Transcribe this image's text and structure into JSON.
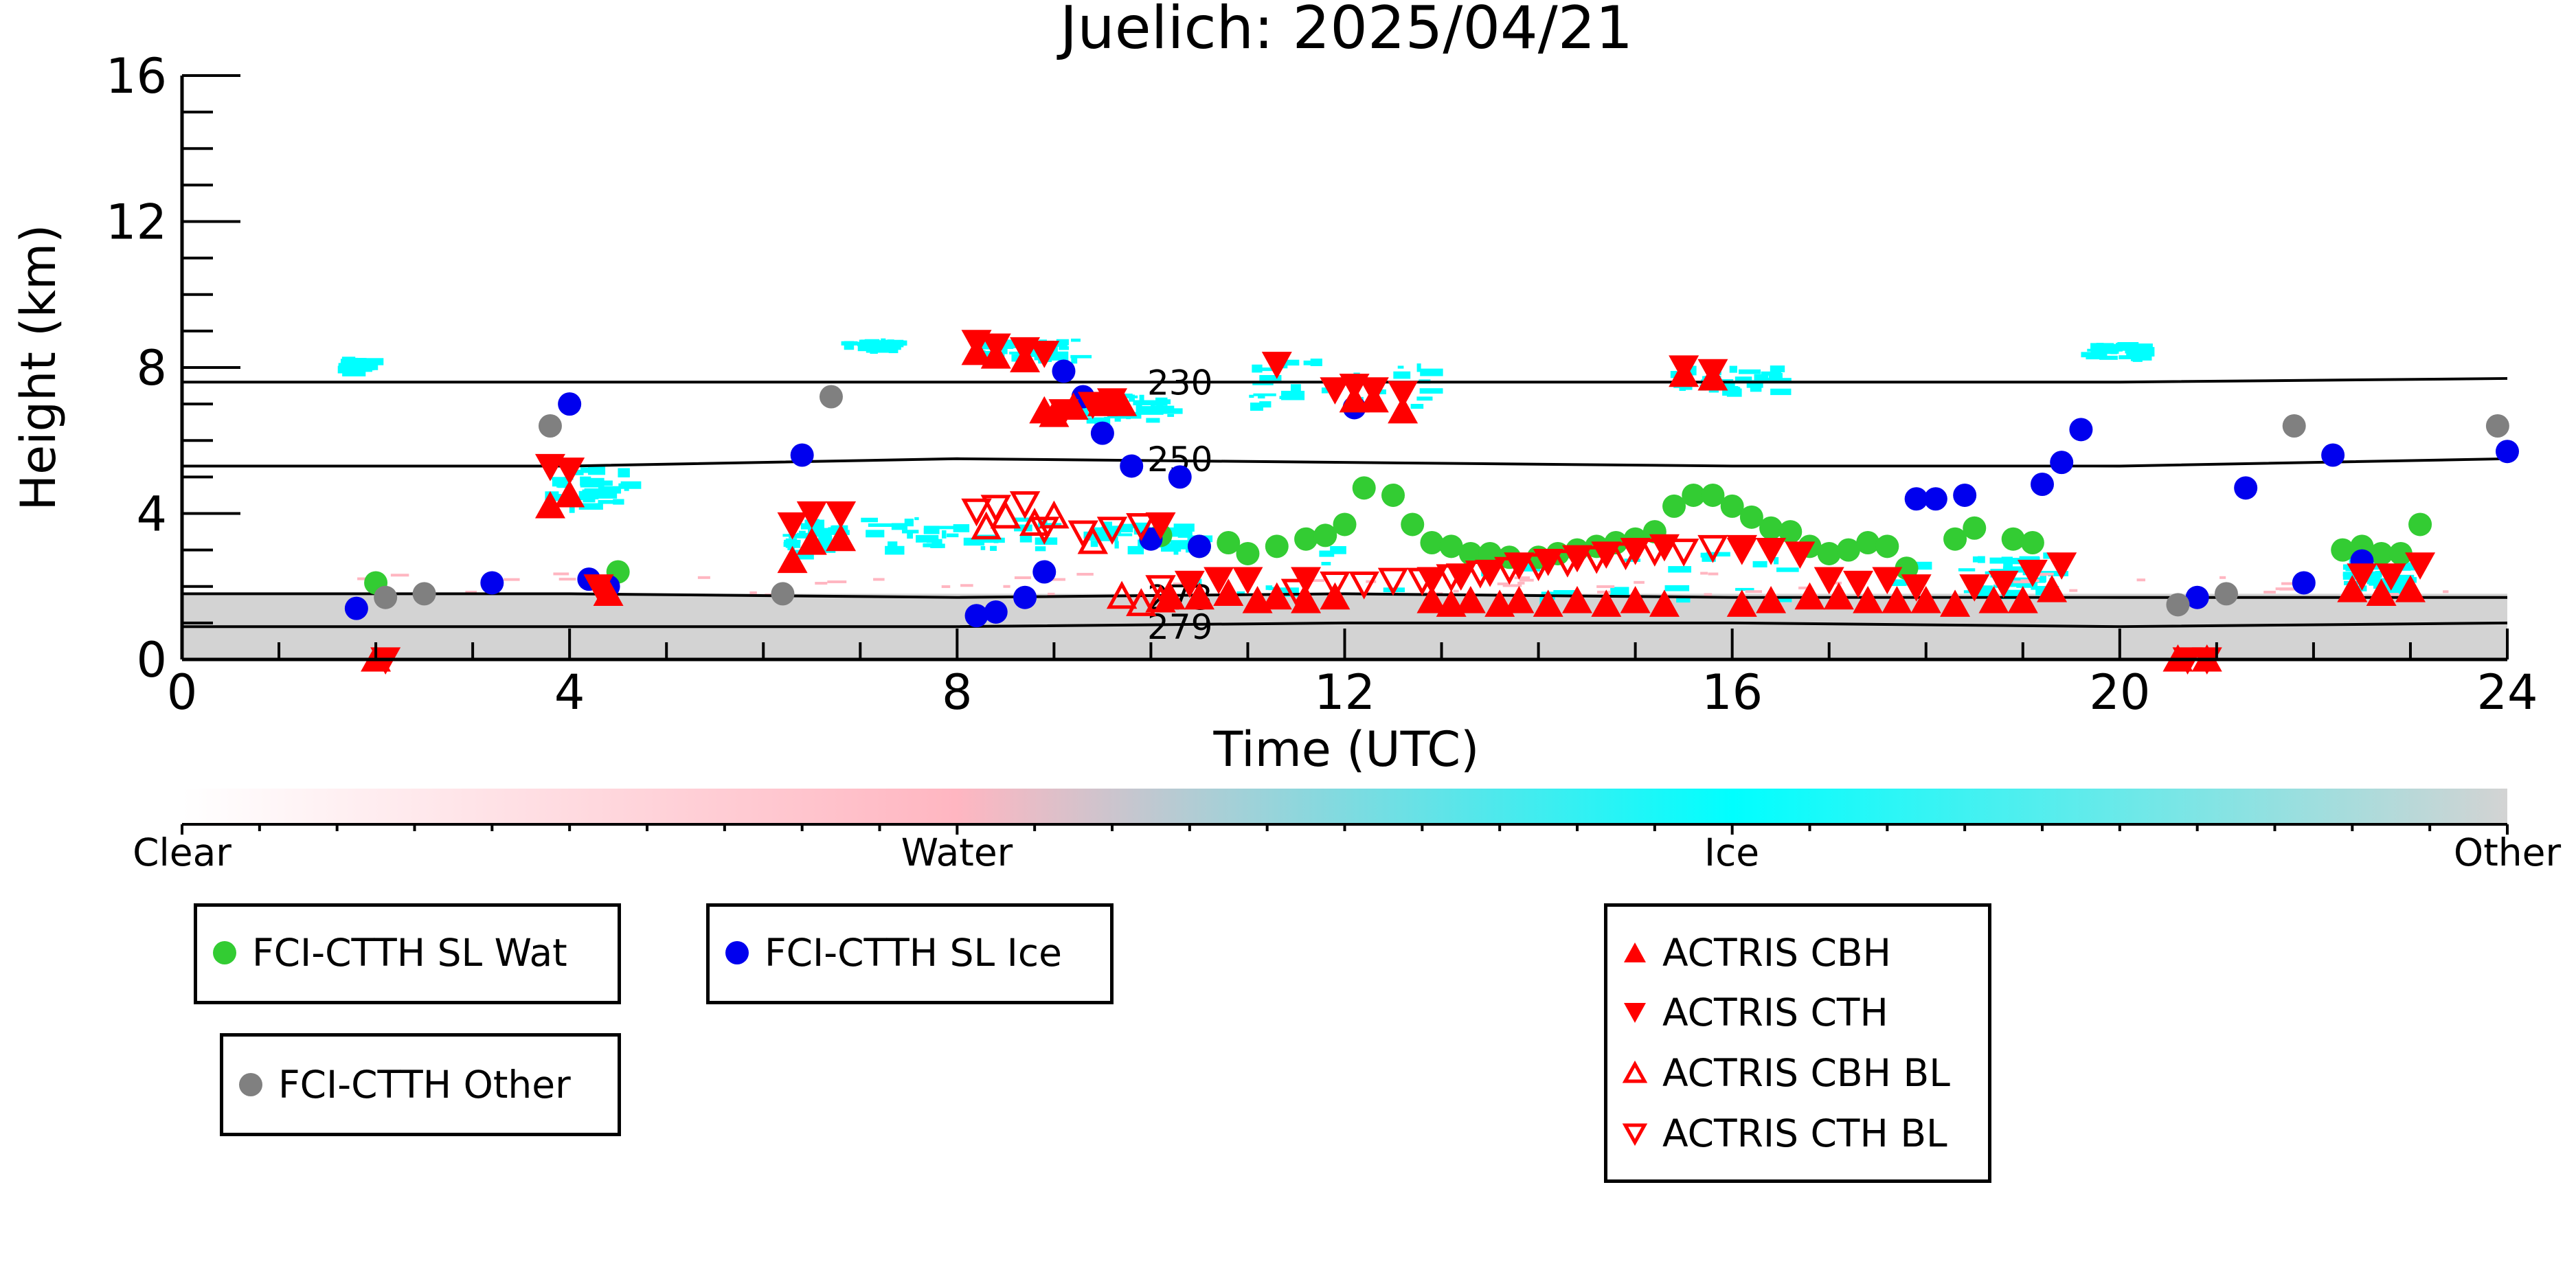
{
  "chart_data": {
    "type": "scatter",
    "title": "Juelich: 2025/04/21",
    "xlabel": "Time (UTC)",
    "ylabel": "Height (km)",
    "xlim": [
      0,
      24
    ],
    "ylim": [
      0,
      16
    ],
    "xticks": [
      0,
      4,
      8,
      12,
      16,
      20,
      24
    ],
    "yticks": [
      0,
      4,
      8,
      12,
      16
    ],
    "isotherms": [
      {
        "label": "230",
        "x": [
          0,
          4,
          8,
          12,
          16,
          20,
          24
        ],
        "y": [
          7.6,
          7.6,
          7.6,
          7.6,
          7.6,
          7.6,
          7.7
        ]
      },
      {
        "label": "250",
        "x": [
          0,
          4,
          8,
          12,
          16,
          20,
          24
        ],
        "y": [
          5.3,
          5.3,
          5.5,
          5.4,
          5.3,
          5.3,
          5.5
        ]
      },
      {
        "label": "273",
        "x": [
          0,
          4,
          8,
          12,
          16,
          20,
          24
        ],
        "y": [
          1.8,
          1.8,
          1.7,
          1.8,
          1.7,
          1.7,
          1.7
        ]
      },
      {
        "label": "279",
        "x": [
          0,
          4,
          8,
          12,
          16,
          20,
          24
        ],
        "y": [
          0.9,
          0.9,
          0.9,
          1.0,
          1.0,
          0.9,
          1.0
        ]
      }
    ],
    "series": [
      {
        "name": "FCI-CTTH SL Wat",
        "color": "#33cc33",
        "marker": "circle",
        "x": [
          2.0,
          4.5,
          10.1,
          10.5,
          10.8,
          11.0,
          11.3,
          11.6,
          11.8,
          12.0,
          12.2,
          12.5,
          12.7,
          12.9,
          13.1,
          13.3,
          13.5,
          13.7,
          14.0,
          14.2,
          14.4,
          14.6,
          14.8,
          15.0,
          15.2,
          15.4,
          15.6,
          15.8,
          16.0,
          16.2,
          16.4,
          16.6,
          16.8,
          17.0,
          17.2,
          17.4,
          17.6,
          17.8,
          18.3,
          18.5,
          18.9,
          19.1,
          22.3,
          22.5,
          22.7,
          22.9,
          23.1
        ],
        "y": [
          2.1,
          2.4,
          3.4,
          3.1,
          3.2,
          2.9,
          3.1,
          3.3,
          3.4,
          3.7,
          4.7,
          4.5,
          3.7,
          3.2,
          3.1,
          2.9,
          2.9,
          2.8,
          2.8,
          2.9,
          3.0,
          3.1,
          3.2,
          3.3,
          3.5,
          4.2,
          4.5,
          4.5,
          4.2,
          3.9,
          3.6,
          3.5,
          3.1,
          2.9,
          3.0,
          3.2,
          3.1,
          2.5,
          3.3,
          3.6,
          3.3,
          3.2,
          3.0,
          3.1,
          2.9,
          2.9,
          3.7
        ]
      },
      {
        "name": "FCI-CTTH SL Ice",
        "color": "#0000ee",
        "marker": "circle",
        "x": [
          1.8,
          3.2,
          4.0,
          4.2,
          4.4,
          6.4,
          8.2,
          8.4,
          8.7,
          8.9,
          9.1,
          9.3,
          9.5,
          9.8,
          10.0,
          10.3,
          10.5,
          12.1,
          17.9,
          18.1,
          18.4,
          19.2,
          19.4,
          19.6,
          20.8,
          21.3,
          21.9,
          22.2,
          22.5,
          24.0
        ],
        "y": [
          1.4,
          2.1,
          7.0,
          2.2,
          2.0,
          5.6,
          1.2,
          1.3,
          1.7,
          2.4,
          7.9,
          7.2,
          6.2,
          5.3,
          3.3,
          5.0,
          3.1,
          6.9,
          4.4,
          4.4,
          4.5,
          4.8,
          5.4,
          6.3,
          1.7,
          4.7,
          2.1,
          5.6,
          2.7,
          5.7
        ]
      },
      {
        "name": "FCI-CTTH Other",
        "color": "#808080",
        "marker": "circle",
        "x": [
          2.1,
          2.5,
          3.8,
          6.2,
          6.7,
          20.6,
          21.1,
          21.8,
          23.9
        ],
        "y": [
          1.7,
          1.8,
          6.4,
          1.8,
          7.2,
          1.5,
          1.8,
          6.4,
          6.4
        ]
      },
      {
        "name": "ACTRIS CBH",
        "color": "#ff0000",
        "marker": "triangle-up",
        "x": [
          2.0,
          3.8,
          4.0,
          4.4,
          6.3,
          6.5,
          6.8,
          8.2,
          8.4,
          8.7,
          8.9,
          9.0,
          9.2,
          9.5,
          9.7,
          10.2,
          10.5,
          10.8,
          11.1,
          11.3,
          11.6,
          11.9,
          12.1,
          12.3,
          12.6,
          12.9,
          13.1,
          13.3,
          13.6,
          13.8,
          14.1,
          14.4,
          14.7,
          15.0,
          15.3,
          15.5,
          15.8,
          16.1,
          16.4,
          16.8,
          17.1,
          17.4,
          17.7,
          18.0,
          18.3,
          18.7,
          19.0,
          19.3,
          20.6,
          20.9,
          22.4,
          22.7,
          23.0
        ],
        "y": [
          0.0,
          4.2,
          4.5,
          1.8,
          2.7,
          3.2,
          3.3,
          8.4,
          8.3,
          8.2,
          6.8,
          6.7,
          6.9,
          7.0,
          7.0,
          1.7,
          1.7,
          1.8,
          1.6,
          1.7,
          1.6,
          1.7,
          7.1,
          7.1,
          6.8,
          1.6,
          1.5,
          1.6,
          1.5,
          1.6,
          1.5,
          1.6,
          1.5,
          1.6,
          1.5,
          7.8,
          7.7,
          1.5,
          1.6,
          1.7,
          1.7,
          1.6,
          1.6,
          1.6,
          1.5,
          1.6,
          1.6,
          1.9,
          0.0,
          0.0,
          1.9,
          1.8,
          1.9
        ]
      },
      {
        "name": "ACTRIS CTH",
        "color": "#ff0000",
        "marker": "triangle-down",
        "x": [
          2.1,
          3.8,
          4.0,
          4.3,
          6.3,
          6.5,
          6.8,
          8.2,
          8.4,
          8.7,
          8.9,
          9.1,
          9.4,
          9.6,
          10.1,
          10.4,
          10.7,
          11.0,
          11.3,
          11.6,
          11.9,
          12.1,
          12.3,
          12.6,
          12.9,
          13.2,
          13.5,
          13.8,
          14.1,
          14.4,
          14.7,
          15.0,
          15.3,
          15.5,
          15.8,
          16.1,
          16.4,
          16.7,
          17.0,
          17.3,
          17.6,
          17.9,
          18.5,
          18.8,
          19.1,
          19.4,
          20.7,
          20.9,
          22.5,
          22.8,
          23.1
        ],
        "y": [
          0.0,
          5.3,
          5.2,
          2.0,
          3.7,
          4.0,
          4.0,
          8.7,
          8.6,
          8.5,
          8.4,
          6.8,
          7.0,
          7.1,
          3.7,
          2.1,
          2.2,
          2.2,
          8.1,
          2.2,
          7.4,
          7.5,
          7.4,
          7.3,
          2.2,
          2.3,
          2.4,
          2.6,
          2.7,
          2.8,
          2.9,
          3.0,
          3.1,
          8.0,
          7.9,
          3.0,
          3.0,
          2.9,
          2.2,
          2.1,
          2.2,
          2.0,
          2.0,
          2.1,
          2.4,
          2.6,
          0.0,
          0.0,
          2.3,
          2.3,
          2.6
        ]
      },
      {
        "name": "ACTRIS CBH BL",
        "color": "#ff0000",
        "marker": "triangle-up-open",
        "x": [
          8.3,
          8.5,
          8.8,
          9.0,
          9.4,
          9.7,
          9.9,
          10.1
        ],
        "y": [
          3.6,
          3.9,
          3.7,
          3.9,
          3.2,
          1.7,
          1.5,
          1.6
        ]
      },
      {
        "name": "ACTRIS CTH BL",
        "color": "#ff0000",
        "marker": "triangle-down-open",
        "x": [
          8.2,
          8.4,
          8.7,
          8.9,
          9.3,
          9.6,
          9.9,
          10.1,
          11.5,
          11.9,
          12.2,
          12.5,
          12.8,
          13.1,
          13.4,
          13.7,
          14.0,
          14.3,
          14.6,
          14.9,
          15.2,
          15.5,
          15.8,
          16.1
        ],
        "y": [
          4.1,
          4.2,
          4.3,
          3.6,
          3.5,
          3.6,
          3.7,
          2.0,
          1.9,
          2.1,
          2.1,
          2.2,
          2.2,
          2.3,
          2.4,
          2.5,
          2.6,
          2.7,
          2.8,
          2.9,
          3.0,
          3.0,
          3.1,
          3.1
        ]
      }
    ],
    "colorbar": {
      "labels": [
        "Clear",
        "Water",
        "Ice",
        "Other"
      ],
      "colors": [
        "#ffffff",
        "#ffb6c1",
        "#00ffff",
        "#d3d3d3"
      ]
    },
    "legend_placement": "below"
  }
}
